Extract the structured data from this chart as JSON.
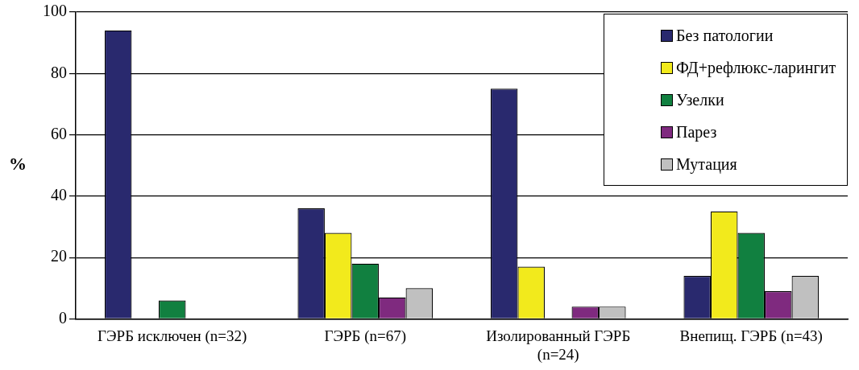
{
  "chart_data": {
    "type": "bar",
    "ylabel": "%",
    "categories": [
      "ГЭРБ исключен (n=32)",
      "ГЭРБ (n=67)",
      "Изолированный ГЭРБ (n=24)",
      "Внепищ. ГЭРБ (n=43)"
    ],
    "series": [
      {
        "name": "Без патологии",
        "color": "#29296e",
        "values": [
          94,
          36,
          75,
          14
        ]
      },
      {
        "name": "ФД+рефлюкс-ларингит",
        "color": "#f2ea1c",
        "values": [
          0,
          28,
          17,
          35
        ]
      },
      {
        "name": "Узелки",
        "color": "#118040",
        "values": [
          6,
          18,
          0,
          28
        ]
      },
      {
        "name": "Парез",
        "color": "#7f2a7f",
        "values": [
          0,
          7,
          4,
          9
        ]
      },
      {
        "name": "Мутация",
        "color": "#c0c0c0",
        "values": [
          0,
          10,
          4,
          14
        ]
      }
    ],
    "ylim": [
      0,
      100
    ],
    "yticks": [
      0,
      20,
      40,
      60,
      80,
      100
    ],
    "grid": "y",
    "legend": "top right"
  }
}
